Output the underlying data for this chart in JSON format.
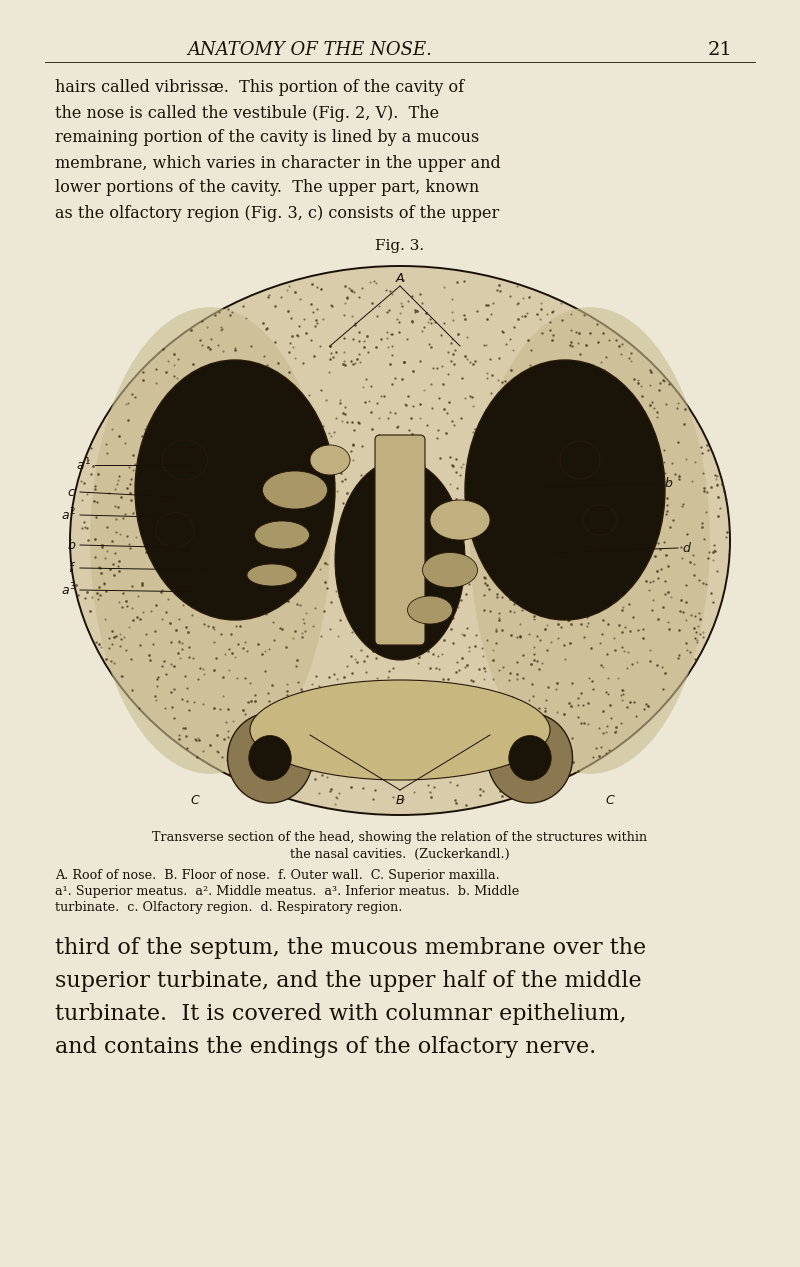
{
  "background_color": "#ede8d5",
  "header_text": "ANATOMY OF THE NOSE.",
  "page_number": "21",
  "body_text_top_lines": [
    "hairs called vibrissæ.  This portion of the cavity of",
    "the nose is called the vestibule (Fig. 2, V).  The",
    "remaining portion of the cavity is lined by a mucous",
    "membrane, which varies in character in the upper and",
    "lower portions of the cavity.  The upper part, known",
    "as the olfactory region (Fig. 3, c) consists of the upper"
  ],
  "fig_caption": "Fig. 3.",
  "caption_line1": "Transverse section of the head, showing the relation of the structures within",
  "caption_line2": "the nasal cavities.  (Zuckerkandl.)",
  "caption_line3": "A. Roof of nose.  B. Floor of nose.  f. Outer wall.  C. Superior maxilla.",
  "caption_line4": "a¹. Superior meatus.  a². Middle meatus.  a³. Inferior meatus.  b. Middle",
  "caption_line5": "turbinate.  c. Olfactory region.  d. Respiratory region.",
  "body_text_bottom_lines": [
    "third of the septum, the mucous membrane over the",
    "superior turbinate, and the upper half of the middle",
    "turbinate.  It is covered with columnar epithelium,",
    "and contains the endings of the olfactory nerve."
  ],
  "text_color": "#1a1008",
  "fig_bg": "#d8ccaa",
  "cavity_dark": "#1a1408",
  "bone_color": "#b8a878",
  "stipple_color": "#3a2a10"
}
